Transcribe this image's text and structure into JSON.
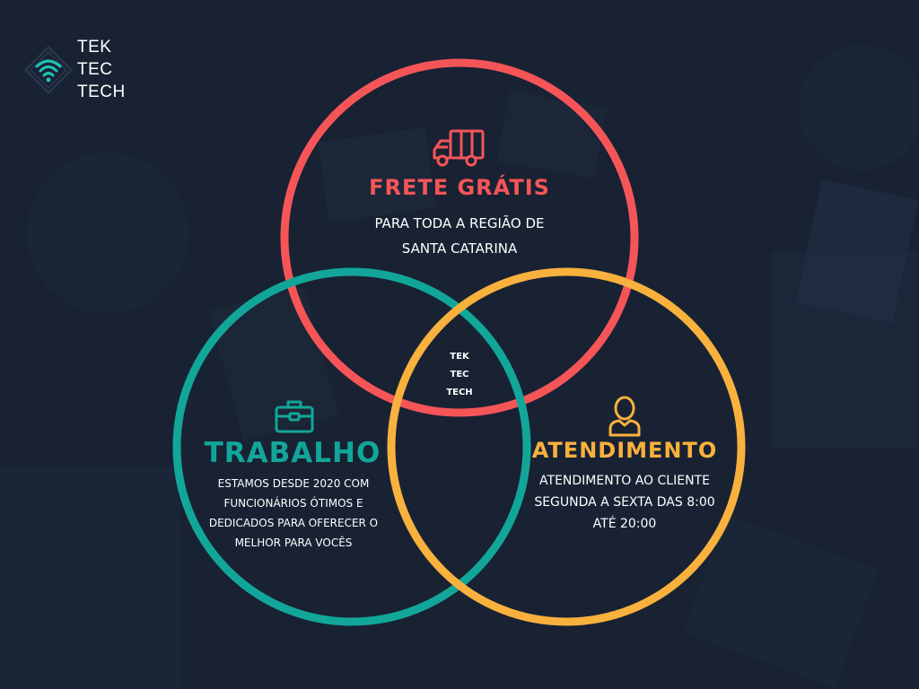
{
  "logo": {
    "lines": [
      "TEK",
      "TEC",
      "TECH"
    ]
  },
  "center_label": {
    "lines": [
      "TEK",
      "TEC",
      "TECH"
    ]
  },
  "colors": {
    "background": "#182233",
    "red": "#f65558",
    "teal": "#12a69a",
    "orange": "#f9b13d",
    "logo_accent": "#1fc4b6"
  },
  "circles": [
    {
      "key": "frete",
      "title": "FRETE GRÁTIS",
      "icon": "truck-icon",
      "color": "#f65558",
      "description_lines": [
        "PARA TODA A REGIÃO DE",
        "SANTA CATARINA"
      ]
    },
    {
      "key": "trabalho",
      "title": "TRABALHO",
      "icon": "briefcase-icon",
      "color": "#12a69a",
      "description_lines": [
        "ESTAMOS DESDE 2020 COM",
        "FUNCIONÁRIOS ÓTIMOS E",
        "DEDICADOS PARA OFERECER O",
        "MELHOR PARA VOCÊS"
      ]
    },
    {
      "key": "atendimento",
      "title": "ATENDIMENTO",
      "icon": "user-icon",
      "color": "#f9b13d",
      "description_lines": [
        "ATENDIMENTO AO CLIENTE",
        "SEGUNDA A SEXTA DAS 8:00",
        "ATÉ 20:00"
      ]
    }
  ]
}
